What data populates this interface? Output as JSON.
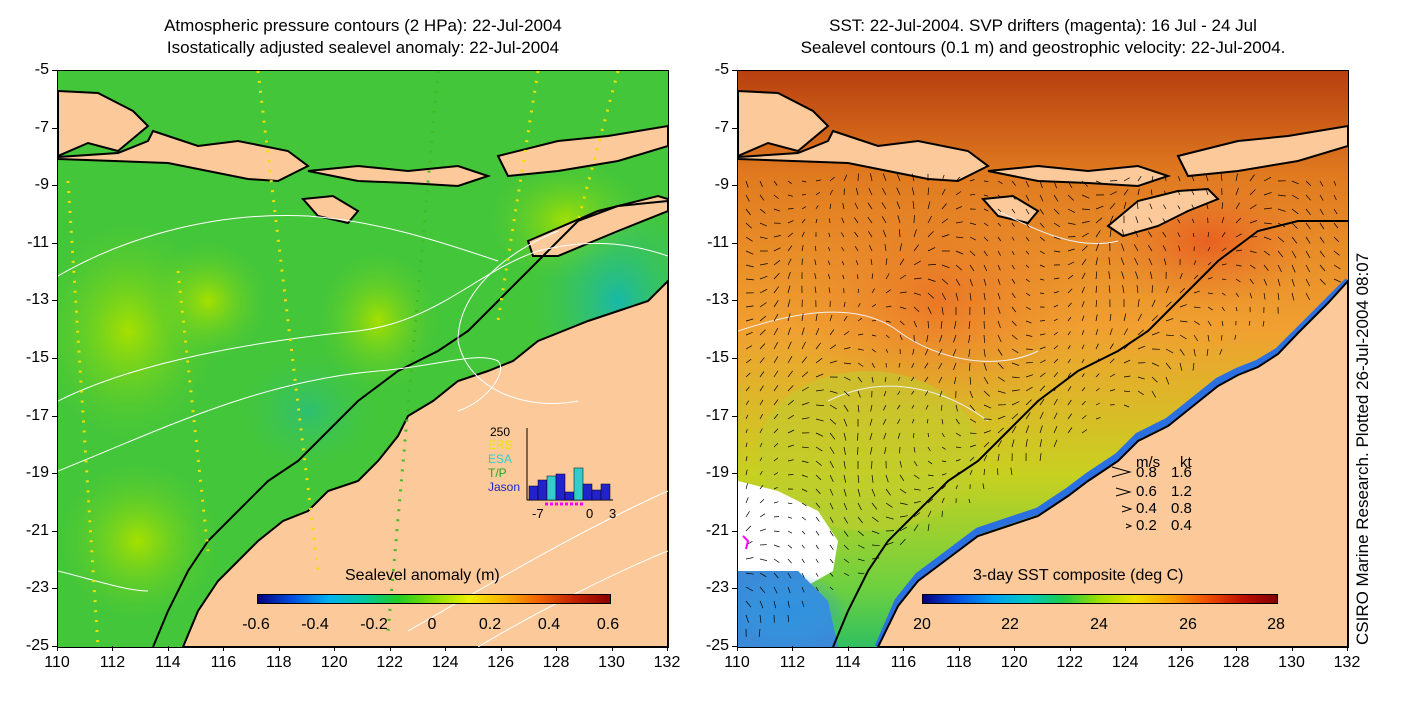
{
  "left": {
    "title_line1": "Atmospheric pressure contours (2 HPa): 22-Jul-2004",
    "title_line2": "Isostatically adjusted sealevel anomaly: 22-Jul-2004",
    "colorbar_label": "Sealevel anomaly (m)",
    "colorbar_ticks": [
      "-0.6",
      "-0.4",
      "-0.2",
      "0",
      "0.2",
      "0.4",
      "0.6"
    ],
    "inset": {
      "ymax": "250",
      "series": [
        {
          "name": "ERS",
          "color": "#e8e800"
        },
        {
          "name": "ESA",
          "color": "#33cccc"
        },
        {
          "name": "T/P",
          "color": "#22aa22"
        },
        {
          "name": "Jason",
          "color": "#2222cc"
        }
      ],
      "xticks": [
        "-7",
        "0",
        "3"
      ]
    }
  },
  "right": {
    "title_line1": "SST: 22-Jul-2004. SVP drifters (magenta): 16 Jul - 24 Jul",
    "title_line2": "Sealevel contours (0.1 m) and geostrophic velocity: 22-Jul-2004.",
    "colorbar_label": "3-day SST composite (deg C)",
    "colorbar_ticks": [
      "20",
      "22",
      "24",
      "26",
      "28"
    ],
    "velocity_legend": {
      "header_ms": "m/s",
      "header_kt": "kt",
      "rows": [
        {
          "ms": "0.8",
          "kt": "1.6"
        },
        {
          "ms": "0.6",
          "kt": "1.2"
        },
        {
          "ms": "0.4",
          "kt": "0.8"
        },
        {
          "ms": "0.2",
          "kt": "0.4"
        }
      ]
    }
  },
  "y_ticks": [
    "-5",
    "-7",
    "-9",
    "-11",
    "-13",
    "-15",
    "-17",
    "-19",
    "-21",
    "-23",
    "-25"
  ],
  "x_ticks": [
    "110",
    "112",
    "114",
    "116",
    "118",
    "120",
    "122",
    "124",
    "126",
    "128",
    "130",
    "132"
  ],
  "credit": "CSIRO Marine Research. Plotted 26-Jul-2004 08:07",
  "colors": {
    "land": "#fbc99a",
    "ocean_left": "#3cc83c",
    "ocean_right": "#e08a3a"
  }
}
